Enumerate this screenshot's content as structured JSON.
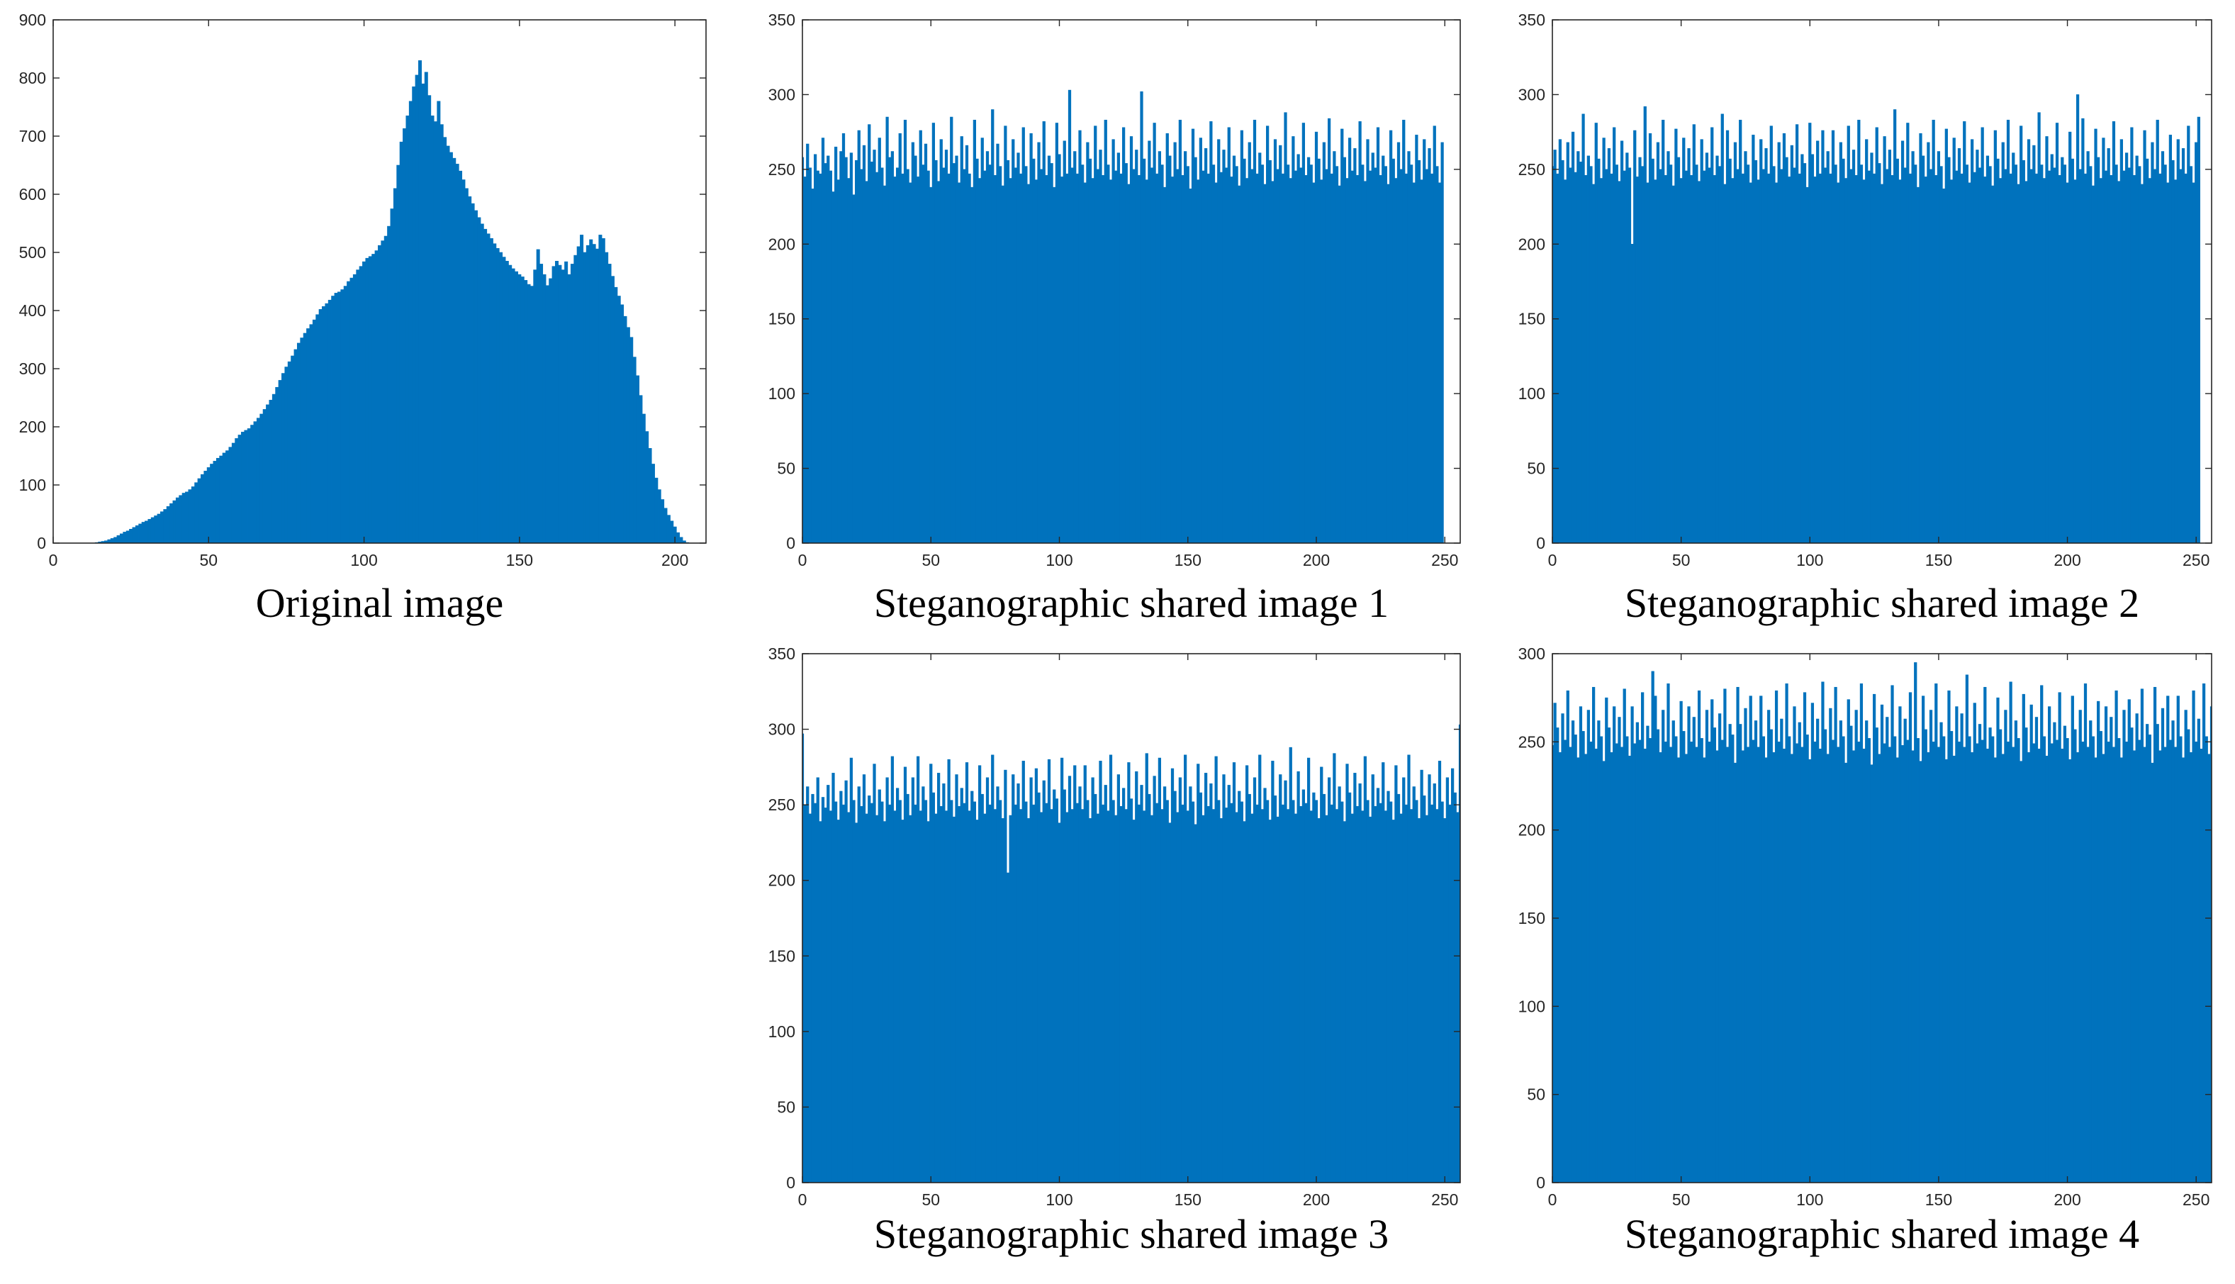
{
  "bar_color": "#0072BD",
  "chart_data": [
    {
      "type": "bar",
      "caption": "Original image",
      "xlim": [
        0,
        210
      ],
      "ylim": [
        0,
        900
      ],
      "xticks": [
        0,
        50,
        100,
        150,
        200
      ],
      "yticks": [
        0,
        100,
        200,
        300,
        400,
        500,
        600,
        700,
        800,
        900
      ],
      "bar_start": 0,
      "values": [
        0,
        0,
        0,
        0,
        0,
        0,
        0,
        0,
        0,
        0,
        0,
        0,
        0,
        0,
        1,
        2,
        3,
        4,
        6,
        8,
        10,
        13,
        16,
        19,
        21,
        24,
        27,
        30,
        33,
        36,
        38,
        41,
        44,
        47,
        50,
        54,
        58,
        63,
        68,
        73,
        78,
        82,
        86,
        88,
        92,
        97,
        104,
        111,
        118,
        124,
        130,
        136,
        141,
        146,
        150,
        155,
        159,
        165,
        172,
        180,
        186,
        191,
        194,
        197,
        203,
        209,
        215,
        222,
        230,
        238,
        246,
        256,
        268,
        280,
        292,
        303,
        312,
        322,
        333,
        344,
        353,
        361,
        369,
        376,
        384,
        393,
        402,
        407,
        412,
        418,
        425,
        430,
        432,
        436,
        442,
        450,
        456,
        462,
        470,
        476,
        484,
        490,
        493,
        497,
        503,
        512,
        520,
        528,
        545,
        575,
        610,
        650,
        690,
        713,
        735,
        760,
        785,
        805,
        830,
        790,
        810,
        770,
        735,
        725,
        760,
        720,
        698,
        683,
        672,
        662,
        652,
        640,
        625,
        610,
        596,
        584,
        572,
        560,
        549,
        540,
        532,
        524,
        515,
        507,
        500,
        492,
        485,
        478,
        472,
        467,
        462,
        458,
        452,
        445,
        442,
        470,
        505,
        480,
        462,
        443,
        455,
        476,
        485,
        478,
        470,
        484,
        462,
        480,
        495,
        510,
        530,
        500,
        512,
        522,
        514,
        506,
        530,
        524,
        500,
        480,
        459,
        440,
        425,
        410,
        390,
        371,
        354,
        320,
        288,
        254,
        222,
        192,
        163,
        136,
        112,
        92,
        75,
        60,
        48,
        38,
        28,
        18,
        10,
        4,
        1,
        0
      ]
    },
    {
      "type": "bar",
      "caption": "Steganographic shared image 1",
      "xlim": [
        0,
        256
      ],
      "ylim": [
        0,
        350
      ],
      "xticks": [
        0,
        50,
        100,
        150,
        200,
        250
      ],
      "yticks": [
        0,
        50,
        100,
        150,
        200,
        250,
        300,
        350
      ],
      "bar_start": 0,
      "values": [
        258,
        245,
        267,
        251,
        237,
        260,
        249,
        247,
        271,
        254,
        259,
        249,
        235,
        265,
        243,
        262,
        274,
        258,
        244,
        261,
        233,
        256,
        276,
        250,
        266,
        242,
        280,
        255,
        263,
        248,
        271,
        251,
        239,
        285,
        258,
        262,
        245,
        251,
        274,
        247,
        283,
        250,
        241,
        268,
        259,
        245,
        276,
        253,
        267,
        249,
        238,
        281,
        256,
        242,
        270,
        251,
        263,
        247,
        285,
        254,
        259,
        241,
        272,
        250,
        266,
        247,
        238,
        283,
        257,
        244,
        271,
        249,
        262,
        253,
        290,
        246,
        267,
        252,
        239,
        279,
        256,
        244,
        270,
        251,
        261,
        247,
        278,
        252,
        240,
        274,
        257,
        243,
        268,
        250,
        282,
        246,
        259,
        254,
        238,
        281,
        260,
        245,
        269,
        247,
        303,
        251,
        262,
        247,
        276,
        253,
        241,
        268,
        257,
        244,
        279,
        250,
        263,
        246,
        283,
        253,
        243,
        270,
        249,
        261,
        247,
        278,
        254,
        240,
        272,
        250,
        263,
        246,
        302,
        257,
        243,
        269,
        251,
        281,
        247,
        262,
        253,
        238,
        274,
        259,
        245,
        268,
        250,
        283,
        246,
        262,
        252,
        237,
        277,
        258,
        243,
        271,
        249,
        264,
        247,
        282,
        253,
        241,
        270,
        248,
        263,
        251,
        278,
        245,
        259,
        252,
        239,
        276,
        257,
        244,
        268,
        250,
        283,
        247,
        261,
        253,
        240,
        279,
        256,
        242,
        270,
        250,
        266,
        247,
        288,
        253,
        244,
        272,
        249,
        260,
        251,
        281,
        246,
        258,
        253,
        241,
        275,
        257,
        243,
        268,
        250,
        284,
        247,
        262,
        252,
        239,
        277,
        258,
        244,
        271,
        249,
        264,
        246,
        282,
        253,
        242,
        270,
        249,
        261,
        251,
        278,
        246,
        259,
        252,
        240,
        276,
        257,
        244,
        268,
        250,
        283,
        247,
        262,
        253,
        241,
        273,
        256,
        243,
        270,
        250,
        264,
        247,
        279,
        252,
        241,
        268
      ]
    },
    {
      "type": "bar",
      "caption": "Steganographic shared image 2",
      "xlim": [
        0,
        256
      ],
      "ylim": [
        0,
        350
      ],
      "xticks": [
        0,
        50,
        100,
        150,
        200,
        250
      ],
      "yticks": [
        0,
        50,
        100,
        150,
        200,
        250,
        300,
        350
      ],
      "bar_start": 0,
      "values": [
        252,
        263,
        247,
        270,
        256,
        243,
        268,
        251,
        275,
        248,
        262,
        255,
        287,
        246,
        259,
        252,
        240,
        281,
        257,
        244,
        271,
        250,
        264,
        247,
        278,
        253,
        242,
        269,
        249,
        261,
        251,
        200,
        276,
        245,
        258,
        252,
        292,
        241,
        274,
        257,
        243,
        268,
        250,
        283,
        246,
        262,
        253,
        239,
        277,
        258,
        244,
        271,
        249,
        264,
        246,
        280,
        253,
        242,
        270,
        249,
        261,
        251,
        278,
        246,
        259,
        252,
        287,
        240,
        276,
        257,
        244,
        268,
        250,
        283,
        247,
        262,
        253,
        241,
        273,
        256,
        243,
        270,
        250,
        264,
        247,
        279,
        252,
        241,
        268,
        250,
        274,
        258,
        245,
        266,
        251,
        280,
        247,
        260,
        254,
        238,
        281,
        260,
        245,
        269,
        247,
        276,
        251,
        262,
        247,
        276,
        253,
        241,
        268,
        257,
        244,
        279,
        250,
        263,
        246,
        283,
        253,
        243,
        270,
        249,
        261,
        247,
        278,
        254,
        240,
        272,
        250,
        263,
        246,
        290,
        257,
        243,
        269,
        251,
        281,
        247,
        262,
        253,
        238,
        274,
        259,
        245,
        268,
        250,
        283,
        246,
        262,
        252,
        237,
        277,
        258,
        243,
        271,
        249,
        264,
        247,
        282,
        253,
        241,
        270,
        248,
        263,
        251,
        278,
        245,
        259,
        252,
        239,
        276,
        257,
        244,
        268,
        250,
        283,
        247,
        261,
        253,
        240,
        279,
        256,
        242,
        270,
        250,
        266,
        247,
        288,
        253,
        244,
        272,
        249,
        260,
        251,
        281,
        246,
        258,
        253,
        241,
        275,
        257,
        243,
        300,
        250,
        284,
        247,
        262,
        252,
        239,
        277,
        258,
        244,
        271,
        249,
        264,
        246,
        282,
        253,
        242,
        270,
        249,
        261,
        251,
        278,
        246,
        259,
        252,
        240,
        276,
        257,
        244,
        268,
        250,
        283,
        247,
        262,
        253,
        241,
        273,
        256,
        243,
        270,
        250,
        264,
        247,
        279,
        252,
        241,
        268,
        285
      ]
    },
    {
      "type": "bar",
      "caption": "Steganographic shared image 3",
      "xlim": [
        0,
        256
      ],
      "ylim": [
        0,
        350
      ],
      "xticks": [
        0,
        50,
        100,
        150,
        200,
        250
      ],
      "yticks": [
        0,
        50,
        100,
        150,
        200,
        250,
        300,
        350
      ],
      "bar_start": 0,
      "values": [
        297,
        250,
        262,
        244,
        257,
        251,
        268,
        239,
        255,
        248,
        263,
        246,
        271,
        252,
        240,
        259,
        250,
        266,
        245,
        281,
        253,
        238,
        262,
        249,
        270,
        244,
        256,
        251,
        277,
        243,
        260,
        252,
        239,
        268,
        250,
        282,
        246,
        261,
        253,
        240,
        275,
        257,
        243,
        268,
        250,
        282,
        246,
        262,
        253,
        239,
        277,
        258,
        244,
        271,
        249,
        264,
        246,
        280,
        253,
        242,
        270,
        249,
        261,
        251,
        278,
        246,
        259,
        252,
        240,
        276,
        257,
        244,
        268,
        250,
        283,
        247,
        262,
        253,
        241,
        273,
        205,
        243,
        270,
        250,
        264,
        247,
        279,
        252,
        241,
        268,
        250,
        274,
        258,
        245,
        266,
        251,
        280,
        247,
        260,
        254,
        238,
        281,
        260,
        245,
        269,
        247,
        276,
        251,
        262,
        247,
        276,
        253,
        241,
        268,
        257,
        244,
        279,
        250,
        263,
        246,
        283,
        253,
        243,
        270,
        249,
        261,
        247,
        278,
        254,
        240,
        272,
        250,
        263,
        246,
        284,
        257,
        243,
        269,
        251,
        281,
        247,
        262,
        253,
        238,
        274,
        259,
        245,
        268,
        250,
        283,
        246,
        262,
        252,
        237,
        277,
        258,
        243,
        271,
        249,
        264,
        247,
        282,
        253,
        241,
        270,
        248,
        263,
        251,
        278,
        245,
        259,
        252,
        239,
        276,
        257,
        244,
        268,
        250,
        283,
        247,
        261,
        253,
        240,
        279,
        256,
        242,
        270,
        250,
        266,
        247,
        288,
        253,
        244,
        272,
        249,
        260,
        251,
        281,
        246,
        258,
        253,
        241,
        275,
        257,
        243,
        268,
        250,
        284,
        247,
        262,
        252,
        239,
        277,
        258,
        244,
        271,
        249,
        264,
        246,
        282,
        253,
        242,
        270,
        249,
        261,
        251,
        278,
        246,
        259,
        252,
        240,
        276,
        257,
        244,
        268,
        250,
        283,
        247,
        262,
        253,
        241,
        273,
        256,
        243,
        270,
        250,
        264,
        247,
        279,
        252,
        241,
        268,
        250,
        274,
        258,
        245,
        303,
        251
      ]
    },
    {
      "type": "bar",
      "caption": "Steganographic shared image 4",
      "xlim": [
        0,
        256
      ],
      "ylim": [
        0,
        300
      ],
      "xticks": [
        0,
        50,
        100,
        150,
        200,
        250
      ],
      "yticks": [
        0,
        50,
        100,
        150,
        200,
        250,
        300
      ],
      "bar_start": 0,
      "values": [
        248,
        272,
        258,
        244,
        266,
        251,
        279,
        247,
        262,
        254,
        241,
        270,
        256,
        243,
        268,
        250,
        281,
        246,
        262,
        253,
        239,
        275,
        258,
        244,
        270,
        249,
        264,
        247,
        280,
        253,
        242,
        270,
        249,
        261,
        251,
        278,
        246,
        259,
        252,
        290,
        276,
        257,
        244,
        268,
        250,
        283,
        247,
        262,
        253,
        241,
        273,
        256,
        243,
        270,
        250,
        264,
        247,
        279,
        252,
        241,
        268,
        250,
        274,
        258,
        245,
        266,
        251,
        280,
        247,
        260,
        254,
        238,
        281,
        260,
        245,
        269,
        247,
        276,
        251,
        262,
        247,
        276,
        253,
        241,
        268,
        257,
        244,
        279,
        250,
        263,
        246,
        283,
        253,
        243,
        270,
        249,
        261,
        247,
        278,
        254,
        240,
        272,
        250,
        263,
        246,
        284,
        257,
        243,
        269,
        251,
        281,
        247,
        262,
        253,
        238,
        274,
        259,
        245,
        268,
        250,
        283,
        246,
        262,
        252,
        237,
        277,
        258,
        243,
        271,
        249,
        264,
        247,
        282,
        253,
        241,
        270,
        248,
        263,
        251,
        278,
        245,
        295,
        252,
        239,
        276,
        257,
        244,
        268,
        250,
        283,
        247,
        261,
        253,
        240,
        279,
        256,
        242,
        270,
        250,
        266,
        247,
        288,
        253,
        244,
        272,
        249,
        260,
        251,
        281,
        246,
        258,
        253,
        241,
        275,
        257,
        243,
        268,
        250,
        284,
        247,
        262,
        252,
        239,
        277,
        258,
        244,
        271,
        249,
        264,
        246,
        282,
        253,
        242,
        270,
        249,
        261,
        251,
        278,
        246,
        259,
        252,
        240,
        276,
        257,
        244,
        268,
        250,
        283,
        247,
        262,
        253,
        241,
        273,
        256,
        243,
        270,
        250,
        264,
        247,
        279,
        252,
        241,
        268,
        250,
        274,
        258,
        245,
        266,
        251,
        280,
        247,
        260,
        254,
        238,
        281,
        260,
        245,
        269,
        247,
        276,
        251,
        262,
        247,
        276,
        253,
        241,
        268,
        257,
        244,
        279,
        250,
        263,
        246,
        283,
        253,
        243,
        270,
        249,
        261,
        247,
        278,
        254,
        240,
        272,
        250,
        263
      ]
    }
  ]
}
